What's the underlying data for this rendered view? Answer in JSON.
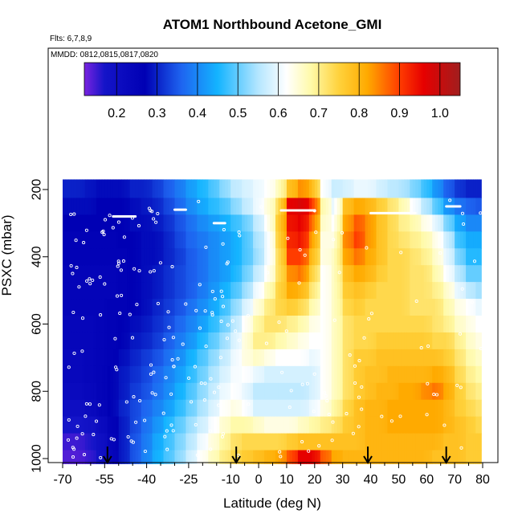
{
  "chart_data": {
    "type": "heatmap",
    "title": "ATOM1 Northbound Acetone_GMI",
    "subtitle_flights": "Flts: 6,7,8,9",
    "subtitle_dates": "MMDD: 0812,0815,0817,0820",
    "xlabel": "Latitude (deg N)",
    "ylabel": "PSXC (mbar)",
    "xlim": [
      -70,
      80
    ],
    "ylim_inverted": [
      1030,
      170
    ],
    "x_ticks": [
      -70,
      -55,
      -40,
      -25,
      -10,
      0,
      10,
      20,
      30,
      40,
      50,
      60,
      70,
      80
    ],
    "y_ticks": [
      200,
      400,
      600,
      800,
      1000
    ],
    "colorbar": {
      "range": [
        0.12,
        1.05
      ],
      "ticks": [
        0.2,
        0.3,
        0.4,
        0.5,
        0.6,
        0.7,
        0.8,
        0.9,
        1.0
      ],
      "stops": [
        {
          "v": 0.12,
          "c": "#7a24e0"
        },
        {
          "v": 0.17,
          "c": "#1414c8"
        },
        {
          "v": 0.27,
          "c": "#0000b4"
        },
        {
          "v": 0.36,
          "c": "#1e64f0"
        },
        {
          "v": 0.45,
          "c": "#14b4ff"
        },
        {
          "v": 0.55,
          "c": "#b4e6ff"
        },
        {
          "v": 0.62,
          "c": "#ffffff"
        },
        {
          "v": 0.68,
          "c": "#fffaaa"
        },
        {
          "v": 0.75,
          "c": "#ffd23c"
        },
        {
          "v": 0.82,
          "c": "#ffaa00"
        },
        {
          "v": 0.9,
          "c": "#ff3c00"
        },
        {
          "v": 0.96,
          "c": "#e60000"
        },
        {
          "v": 1.05,
          "c": "#a01e1e"
        }
      ]
    },
    "pressure_levels": [
      200,
      250,
      300,
      350,
      400,
      450,
      500,
      550,
      600,
      650,
      700,
      750,
      800,
      850,
      900,
      950,
      1000
    ],
    "latitude_bins": [
      -68,
      -64,
      -60,
      -56,
      -52,
      -48,
      -44,
      -40,
      -36,
      -32,
      -28,
      -24,
      -20,
      -16,
      -12,
      -8,
      -4,
      0,
      4,
      8,
      12,
      16,
      20,
      24,
      28,
      32,
      36,
      40,
      44,
      48,
      52,
      56,
      60,
      64,
      68,
      72,
      76,
      79
    ],
    "values": [
      [
        0.3,
        0.3,
        0.29,
        0.28,
        0.28,
        0.28,
        0.3,
        0.3,
        0.32,
        0.35,
        0.38,
        0.42,
        0.45,
        0.48,
        0.52,
        0.56,
        0.58,
        0.6,
        0.62,
        0.66,
        0.78,
        0.84,
        0.8,
        0.62,
        0.57,
        0.58,
        0.6,
        0.6,
        0.58,
        0.56,
        0.55,
        0.52,
        0.48,
        0.42,
        0.36,
        0.32,
        0.3,
        0.3
      ],
      [
        0.28,
        0.28,
        0.28,
        0.27,
        0.27,
        0.27,
        0.28,
        0.29,
        0.3,
        0.33,
        0.36,
        0.4,
        0.43,
        0.46,
        0.48,
        0.52,
        0.56,
        0.6,
        0.64,
        0.72,
        0.96,
        0.98,
        0.92,
        0.68,
        0.6,
        0.78,
        0.82,
        0.8,
        0.76,
        0.72,
        0.68,
        0.62,
        0.56,
        0.5,
        0.42,
        0.38,
        0.36,
        0.35
      ],
      [
        0.27,
        0.27,
        0.27,
        0.27,
        0.27,
        0.27,
        0.28,
        0.28,
        0.29,
        0.31,
        0.34,
        0.37,
        0.4,
        0.42,
        0.44,
        0.47,
        0.5,
        0.56,
        0.62,
        0.75,
        0.94,
        0.96,
        0.88,
        0.66,
        0.62,
        0.82,
        0.88,
        0.84,
        0.78,
        0.74,
        0.7,
        0.68,
        0.64,
        0.6,
        0.52,
        0.44,
        0.4,
        0.4
      ],
      [
        0.26,
        0.26,
        0.26,
        0.26,
        0.26,
        0.27,
        0.27,
        0.28,
        0.28,
        0.3,
        0.33,
        0.36,
        0.38,
        0.4,
        0.42,
        0.44,
        0.48,
        0.54,
        0.6,
        0.74,
        0.92,
        0.94,
        0.84,
        0.64,
        0.64,
        0.84,
        0.9,
        0.84,
        0.78,
        0.74,
        0.72,
        0.7,
        0.68,
        0.64,
        0.58,
        0.48,
        0.44,
        0.44
      ],
      [
        0.26,
        0.26,
        0.26,
        0.26,
        0.26,
        0.26,
        0.27,
        0.28,
        0.28,
        0.3,
        0.32,
        0.35,
        0.37,
        0.4,
        0.42,
        0.44,
        0.48,
        0.53,
        0.6,
        0.72,
        0.9,
        0.9,
        0.8,
        0.64,
        0.66,
        0.82,
        0.86,
        0.82,
        0.78,
        0.74,
        0.74,
        0.72,
        0.7,
        0.66,
        0.6,
        0.52,
        0.46,
        0.46
      ],
      [
        0.25,
        0.25,
        0.25,
        0.25,
        0.25,
        0.26,
        0.27,
        0.28,
        0.29,
        0.31,
        0.33,
        0.35,
        0.37,
        0.4,
        0.42,
        0.45,
        0.5,
        0.56,
        0.62,
        0.72,
        0.84,
        0.86,
        0.76,
        0.62,
        0.66,
        0.78,
        0.82,
        0.8,
        0.76,
        0.74,
        0.74,
        0.72,
        0.72,
        0.68,
        0.62,
        0.56,
        0.5,
        0.5
      ],
      [
        0.25,
        0.25,
        0.25,
        0.25,
        0.25,
        0.26,
        0.27,
        0.28,
        0.29,
        0.31,
        0.33,
        0.35,
        0.38,
        0.41,
        0.44,
        0.48,
        0.53,
        0.6,
        0.66,
        0.74,
        0.82,
        0.8,
        0.72,
        0.62,
        0.66,
        0.76,
        0.78,
        0.76,
        0.74,
        0.74,
        0.74,
        0.72,
        0.72,
        0.7,
        0.66,
        0.6,
        0.56,
        0.54
      ],
      [
        0.25,
        0.25,
        0.25,
        0.25,
        0.26,
        0.26,
        0.27,
        0.28,
        0.3,
        0.32,
        0.34,
        0.37,
        0.4,
        0.43,
        0.47,
        0.52,
        0.58,
        0.64,
        0.7,
        0.74,
        0.76,
        0.74,
        0.68,
        0.62,
        0.66,
        0.74,
        0.76,
        0.74,
        0.74,
        0.74,
        0.74,
        0.72,
        0.72,
        0.72,
        0.68,
        0.64,
        0.62,
        0.6
      ],
      [
        0.24,
        0.24,
        0.24,
        0.25,
        0.26,
        0.27,
        0.28,
        0.29,
        0.31,
        0.33,
        0.36,
        0.39,
        0.42,
        0.46,
        0.5,
        0.55,
        0.62,
        0.68,
        0.72,
        0.72,
        0.7,
        0.68,
        0.64,
        0.62,
        0.66,
        0.72,
        0.74,
        0.74,
        0.74,
        0.74,
        0.74,
        0.74,
        0.74,
        0.72,
        0.7,
        0.66,
        0.64,
        0.62
      ],
      [
        0.24,
        0.24,
        0.24,
        0.25,
        0.26,
        0.27,
        0.29,
        0.3,
        0.32,
        0.35,
        0.38,
        0.41,
        0.45,
        0.49,
        0.53,
        0.58,
        0.64,
        0.7,
        0.7,
        0.68,
        0.66,
        0.64,
        0.62,
        0.62,
        0.66,
        0.72,
        0.74,
        0.74,
        0.76,
        0.76,
        0.76,
        0.76,
        0.76,
        0.74,
        0.74,
        0.7,
        0.66,
        0.64
      ],
      [
        0.23,
        0.23,
        0.24,
        0.25,
        0.26,
        0.28,
        0.3,
        0.32,
        0.34,
        0.37,
        0.4,
        0.44,
        0.48,
        0.52,
        0.56,
        0.6,
        0.64,
        0.66,
        0.64,
        0.62,
        0.62,
        0.62,
        0.6,
        0.62,
        0.66,
        0.72,
        0.76,
        0.76,
        0.78,
        0.78,
        0.78,
        0.78,
        0.78,
        0.78,
        0.76,
        0.72,
        0.68,
        0.66
      ],
      [
        0.23,
        0.23,
        0.24,
        0.25,
        0.27,
        0.29,
        0.31,
        0.33,
        0.36,
        0.39,
        0.42,
        0.46,
        0.5,
        0.54,
        0.58,
        0.61,
        0.62,
        0.6,
        0.58,
        0.58,
        0.58,
        0.58,
        0.58,
        0.62,
        0.66,
        0.72,
        0.76,
        0.78,
        0.78,
        0.8,
        0.8,
        0.8,
        0.8,
        0.82,
        0.8,
        0.74,
        0.7,
        0.68
      ],
      [
        0.22,
        0.22,
        0.23,
        0.25,
        0.27,
        0.29,
        0.32,
        0.34,
        0.37,
        0.4,
        0.44,
        0.48,
        0.52,
        0.56,
        0.6,
        0.62,
        0.6,
        0.56,
        0.56,
        0.56,
        0.56,
        0.56,
        0.58,
        0.62,
        0.66,
        0.72,
        0.76,
        0.78,
        0.8,
        0.8,
        0.82,
        0.82,
        0.84,
        0.86,
        0.82,
        0.76,
        0.72,
        0.7
      ],
      [
        0.2,
        0.2,
        0.22,
        0.24,
        0.27,
        0.3,
        0.33,
        0.36,
        0.39,
        0.42,
        0.46,
        0.5,
        0.54,
        0.58,
        0.62,
        0.64,
        0.62,
        0.58,
        0.58,
        0.58,
        0.58,
        0.58,
        0.6,
        0.64,
        0.68,
        0.74,
        0.78,
        0.8,
        0.8,
        0.82,
        0.82,
        0.82,
        0.82,
        0.82,
        0.8,
        0.76,
        0.74,
        0.72
      ],
      [
        0.17,
        0.17,
        0.18,
        0.21,
        0.25,
        0.29,
        0.33,
        0.37,
        0.41,
        0.45,
        0.49,
        0.53,
        0.57,
        0.61,
        0.65,
        0.68,
        0.68,
        0.66,
        0.64,
        0.64,
        0.64,
        0.66,
        0.68,
        0.7,
        0.72,
        0.76,
        0.78,
        0.8,
        0.8,
        0.82,
        0.82,
        0.82,
        0.82,
        0.82,
        0.8,
        0.78,
        0.76,
        0.74
      ],
      [
        0.15,
        0.15,
        0.16,
        0.19,
        0.24,
        0.29,
        0.34,
        0.38,
        0.43,
        0.47,
        0.51,
        0.55,
        0.6,
        0.64,
        0.68,
        0.72,
        0.74,
        0.74,
        0.74,
        0.74,
        0.76,
        0.78,
        0.78,
        0.78,
        0.78,
        0.78,
        0.78,
        0.8,
        0.8,
        0.8,
        0.8,
        0.8,
        0.8,
        0.8,
        0.78,
        0.78,
        0.76,
        0.76
      ],
      [
        0.14,
        0.14,
        0.15,
        0.18,
        0.23,
        0.29,
        0.34,
        0.39,
        0.44,
        0.48,
        0.52,
        0.57,
        0.62,
        0.66,
        0.7,
        0.74,
        0.76,
        0.78,
        0.8,
        0.82,
        0.88,
        0.96,
        0.96,
        0.88,
        0.82,
        0.8,
        0.8,
        0.8,
        0.8,
        0.8,
        0.8,
        0.8,
        0.8,
        0.78,
        0.78,
        0.78,
        0.76,
        0.76
      ]
    ],
    "arrows_latitude": [
      -54,
      -8,
      39,
      67
    ]
  }
}
